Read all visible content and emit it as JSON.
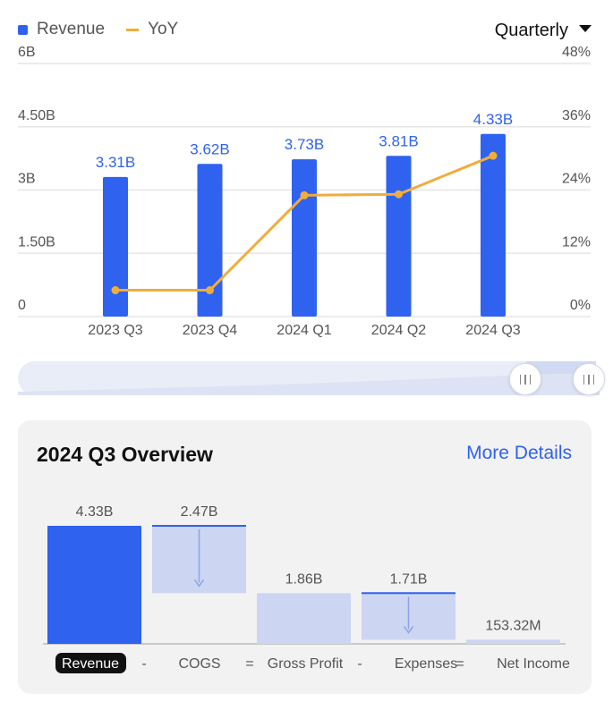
{
  "legend": {
    "revenue_label": "Revenue",
    "yoy_label": "YoY"
  },
  "period_selector": {
    "value": "Quarterly"
  },
  "chart_data": [
    {
      "type": "bar",
      "categories": [
        "2023 Q3",
        "2023 Q4",
        "2024 Q1",
        "2024 Q2",
        "2024 Q3"
      ],
      "series": [
        {
          "name": "Revenue",
          "values": [
            3.31,
            3.62,
            3.73,
            3.81,
            4.33
          ],
          "labels": [
            "3.31B",
            "3.62B",
            "3.73B",
            "3.81B",
            "4.33B"
          ],
          "color": "#2f62ef",
          "axis": "left"
        },
        {
          "name": "YoY",
          "type": "line",
          "values": [
            5.0,
            5.0,
            23.0,
            23.2,
            30.5
          ],
          "color": "#f0ad3c",
          "axis": "right"
        }
      ],
      "y_left": {
        "ylim": [
          0,
          6
        ],
        "ticks": [
          0,
          1.5,
          3,
          4.5,
          6
        ],
        "tick_labels": [
          "0",
          "1.50B",
          "3B",
          "4.50B",
          "6B"
        ]
      },
      "y_right": {
        "ylim": [
          0,
          48
        ],
        "ticks": [
          0,
          12,
          24,
          36,
          48
        ],
        "tick_labels": [
          "0%",
          "12%",
          "24%",
          "36%",
          "48%"
        ]
      },
      "grid": true,
      "legend": "top-left"
    },
    {
      "type": "bar",
      "subtype": "waterfall",
      "title": "2024 Q3 Overview",
      "categories": [
        "Revenue",
        "COGS",
        "Gross Profit",
        "Expenses",
        "Net Income"
      ],
      "values": [
        4.33,
        -2.47,
        1.86,
        -1.71,
        0.15332
      ],
      "labels": [
        "4.33B",
        "2.47B",
        "1.86B",
        "1.71B",
        "153.32M"
      ],
      "operators": [
        "-",
        "=",
        "-",
        "="
      ]
    }
  ],
  "overview": {
    "title": "2024 Q3 Overview",
    "more_details": "More Details",
    "selected_category": "Revenue"
  },
  "colors": {
    "revenue": "#2f62ef",
    "yoy": "#f0ad3c",
    "light_bar": "#ccd5f2",
    "grid": "#e6e6e6"
  }
}
